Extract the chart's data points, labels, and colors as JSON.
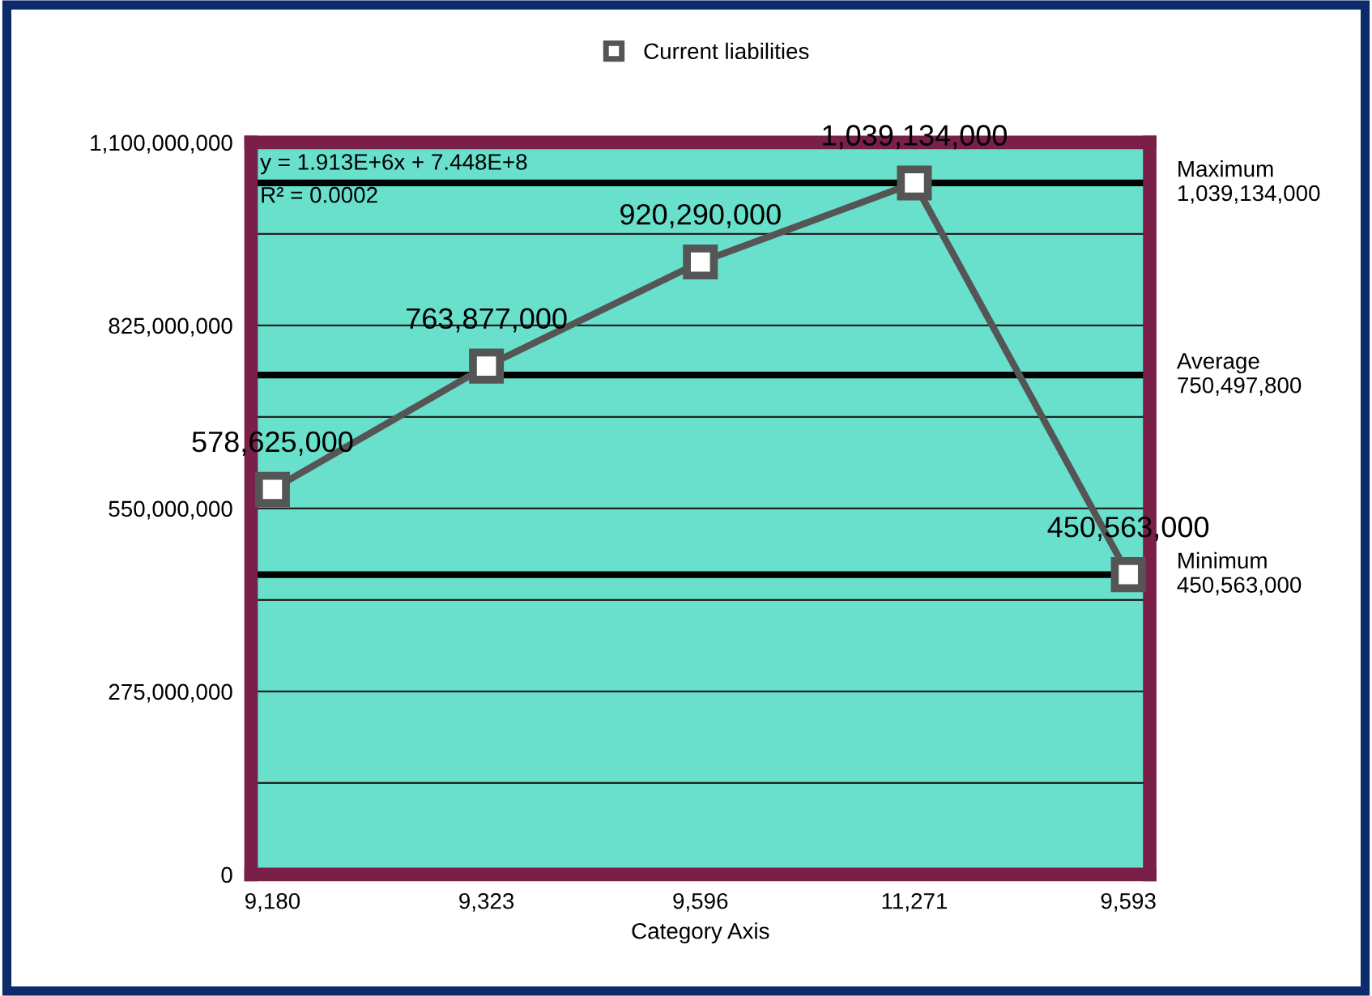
{
  "chart_data": {
    "type": "line",
    "xlabel": "Category Axis",
    "categories": [
      "9,180",
      "9,323",
      "9,596",
      "11,271",
      "9,593"
    ],
    "series": [
      {
        "name": "Current liabilities",
        "color": "#555555",
        "values": [
          578625000,
          763877000,
          920290000,
          1039134000,
          450563000
        ],
        "value_labels": [
          "578,625,000",
          "763,877,000",
          "920,290,000",
          "1,039,134,000",
          "450,563,000"
        ]
      }
    ],
    "ylim": [
      0,
      1100000000
    ],
    "yticks": [
      {
        "value": 0,
        "label": "0"
      },
      {
        "value": 137500000,
        "label": null
      },
      {
        "value": 275000000,
        "label": "275,000,000"
      },
      {
        "value": 412500000,
        "label": null
      },
      {
        "value": 550000000,
        "label": "550,000,000"
      },
      {
        "value": 687500000,
        "label": null
      },
      {
        "value": 825000000,
        "label": "825,000,000"
      },
      {
        "value": 962500000,
        "label": null
      },
      {
        "value": 1100000000,
        "label": "1,100,000,000"
      }
    ],
    "grid": "y",
    "legend": "top",
    "marker": "square",
    "line_style": "solid",
    "ref_lines": [
      {
        "axis": "y",
        "value": 1039134000,
        "label": "Maximum\n1,039,134,000",
        "color": "#000000"
      },
      {
        "axis": "y",
        "value": 750497800,
        "label": "Average\n750,497,800",
        "color": "#000000"
      },
      {
        "axis": "y",
        "value": 450563000,
        "label": "Minimum\n450,563,000",
        "color": "#000000"
      }
    ],
    "annotations": [
      "y = 1.913E+6x + 7.448E+8",
      "R² = 0.0002"
    ]
  }
}
